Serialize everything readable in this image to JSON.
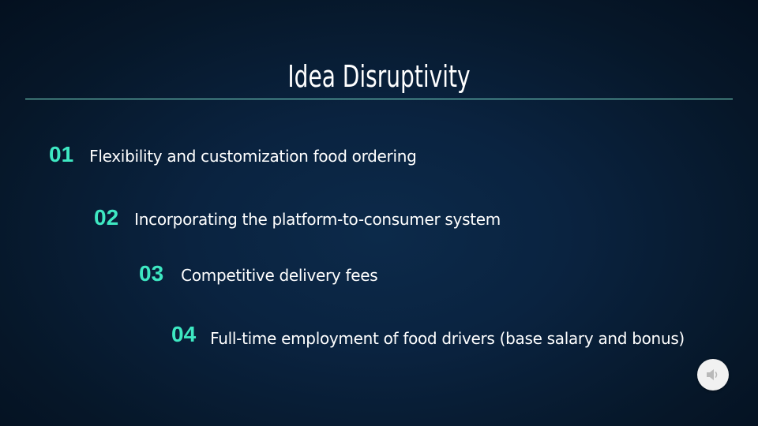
{
  "slide": {
    "title": "Idea Disruptivity",
    "items": [
      {
        "number": "01",
        "text": "Flexibility and customization food ordering"
      },
      {
        "number": "02",
        "text": "Incorporating the platform-to-consumer system"
      },
      {
        "number": "03",
        "text": "Competitive delivery fees"
      },
      {
        "number": "04",
        "text": "Full-time employment of food drivers (base salary and bonus)"
      }
    ]
  },
  "audio_button": {
    "icon": "speaker-icon"
  },
  "colors": {
    "background": "#0a2340",
    "accent": "#3ee8c2",
    "rule": "#7fe6cf",
    "text": "#ffffff"
  }
}
